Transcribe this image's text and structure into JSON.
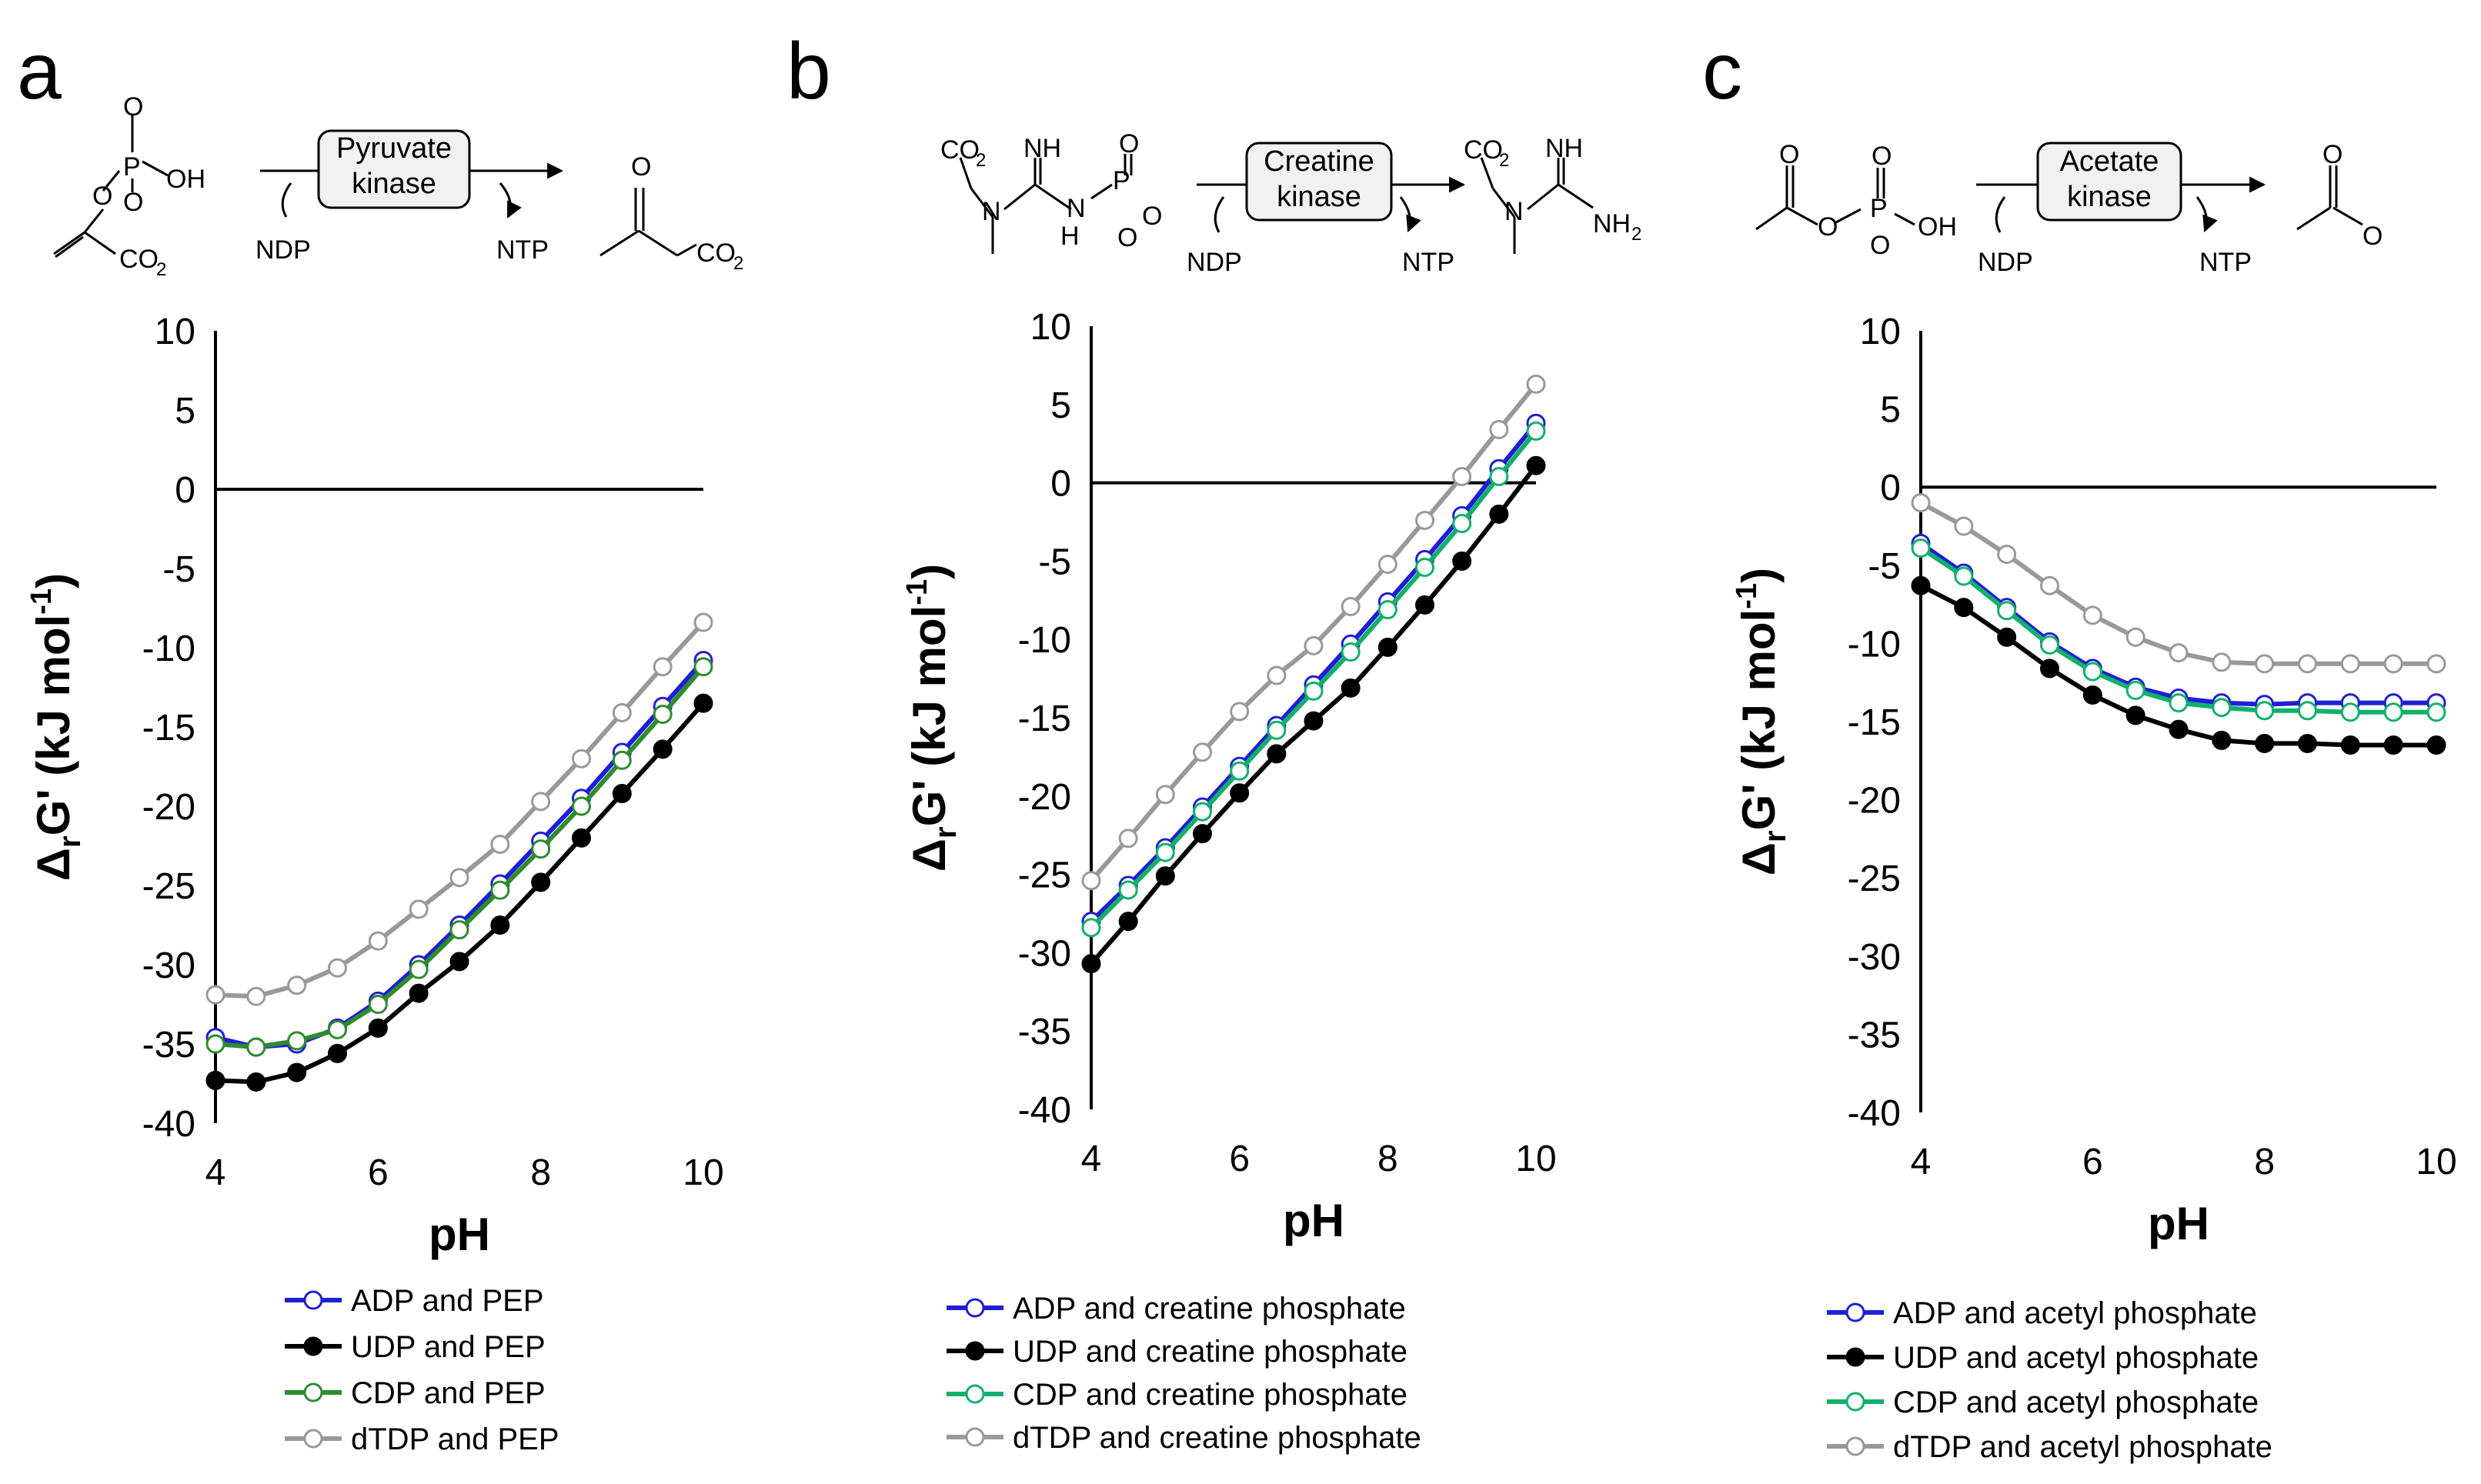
{
  "chart_data": [
    {
      "type": "line",
      "panel_label": "a",
      "enzyme_label": "Pyruvate kinase",
      "reaction": {
        "left_cofactor": "NDP",
        "right_cofactor": "NTP"
      },
      "xlabel": "pH",
      "ylabel": "ΔrG' (kJ mol-1)",
      "xlim": [
        4,
        10
      ],
      "ylim": [
        -40,
        10
      ],
      "xticks": [
        "4",
        "6",
        "8",
        "10"
      ],
      "yticks": [
        "10",
        "5",
        "0",
        "-5",
        "-10",
        "-15",
        "-20",
        "-25",
        "-30",
        "-35",
        "-40"
      ],
      "legend_position": "bottom",
      "x": [
        4,
        4.5,
        5,
        5.5,
        6,
        6.5,
        7,
        7.5,
        8,
        8.5,
        9,
        9.5,
        10
      ],
      "series": [
        {
          "name": "ADP and PEP",
          "line_color": "#1f1fd6",
          "marker_fill": "#ffffff",
          "marker_stroke": "#1f1fd6",
          "values": [
            -34.6,
            -35.2,
            -35.0,
            -34.0,
            -32.3,
            -30.0,
            -27.5,
            -24.9,
            -22.2,
            -19.5,
            -16.6,
            -13.7,
            -10.8
          ]
        },
        {
          "name": "UDP and PEP",
          "line_color": "#000000",
          "marker_fill": "#000000",
          "marker_stroke": "#000000",
          "values": [
            -37.3,
            -37.4,
            -36.8,
            -35.6,
            -34.0,
            -31.8,
            -29.8,
            -27.5,
            -24.8,
            -22.0,
            -19.2,
            -16.4,
            -13.5
          ]
        },
        {
          "name": "CDP and PEP",
          "line_color": "#2e8b2e",
          "marker_fill": "#ffffff",
          "marker_stroke": "#2e8b2e",
          "values": [
            -35.0,
            -35.2,
            -34.8,
            -34.1,
            -32.5,
            -30.3,
            -27.8,
            -25.3,
            -22.7,
            -20.0,
            -17.1,
            -14.2,
            -11.2
          ]
        },
        {
          "name": "dTDP and PEP",
          "line_color": "#999999",
          "marker_fill": "#ffffff",
          "marker_stroke": "#999999",
          "values": [
            -31.9,
            -32.0,
            -31.3,
            -30.2,
            -28.5,
            -26.5,
            -24.5,
            -22.4,
            -19.7,
            -17.0,
            -14.1,
            -11.2,
            -8.4
          ]
        }
      ]
    },
    {
      "type": "line",
      "panel_label": "b",
      "enzyme_label": "Creatine kinase",
      "reaction": {
        "left_cofactor": "NDP",
        "right_cofactor": "NTP"
      },
      "xlabel": "pH",
      "ylabel": "ΔrG' (kJ mol-1)",
      "xlim": [
        4,
        10
      ],
      "ylim": [
        -40,
        10
      ],
      "xticks": [
        "4",
        "6",
        "8",
        "10"
      ],
      "yticks": [
        "10",
        "5",
        "0",
        "-5",
        "-10",
        "-15",
        "-20",
        "-25",
        "-30",
        "-35",
        "-40"
      ],
      "legend_position": "bottom",
      "x": [
        4,
        4.5,
        5,
        5.5,
        6,
        6.5,
        7,
        7.5,
        8,
        8.5,
        9,
        9.5,
        10
      ],
      "series": [
        {
          "name": "ADP and creatine phosphate",
          "line_color": "#1f1fd6",
          "marker_fill": "#ffffff",
          "marker_stroke": "#1f1fd6",
          "values": [
            -28.0,
            -25.7,
            -23.3,
            -20.7,
            -18.1,
            -15.5,
            -12.9,
            -10.3,
            -7.6,
            -4.9,
            -2.1,
            0.9,
            3.8
          ]
        },
        {
          "name": "UDP and creatine phosphate",
          "line_color": "#000000",
          "marker_fill": "#000000",
          "marker_stroke": "#000000",
          "values": [
            -30.7,
            -28.0,
            -25.1,
            -22.4,
            -19.8,
            -17.3,
            -15.2,
            -13.1,
            -10.5,
            -7.8,
            -5.0,
            -2.0,
            1.1
          ]
        },
        {
          "name": "CDP and creatine phosphate",
          "line_color": "#12b06a",
          "marker_fill": "#ffffff",
          "marker_stroke": "#12b06a",
          "values": [
            -28.4,
            -26.0,
            -23.6,
            -21.0,
            -18.4,
            -15.8,
            -13.3,
            -10.8,
            -8.1,
            -5.4,
            -2.6,
            0.4,
            3.3
          ]
        },
        {
          "name": "dTDP and creatine phosphate",
          "line_color": "#999999",
          "marker_fill": "#ffffff",
          "marker_stroke": "#999999",
          "values": [
            -25.4,
            -22.7,
            -19.9,
            -17.2,
            -14.6,
            -12.3,
            -10.4,
            -7.9,
            -5.2,
            -2.4,
            0.4,
            3.4,
            6.3
          ]
        }
      ]
    },
    {
      "type": "line",
      "panel_label": "c",
      "enzyme_label": "Acetate kinase",
      "reaction": {
        "left_cofactor": "NDP",
        "right_cofactor": "NTP"
      },
      "xlabel": "pH",
      "ylabel": "ΔrG' (kJ mol-1)",
      "xlim": [
        4,
        10
      ],
      "ylim": [
        -40,
        10
      ],
      "xticks": [
        "4",
        "6",
        "8",
        "10"
      ],
      "yticks": [
        "10",
        "5",
        "0",
        "-5",
        "-10",
        "-15",
        "-20",
        "-25",
        "-30",
        "-35",
        "-40"
      ],
      "legend_position": "bottom",
      "x": [
        4,
        4.5,
        5,
        5.5,
        6,
        6.5,
        7,
        7.5,
        8,
        8.5,
        9,
        9.5,
        10
      ],
      "series": [
        {
          "name": "ADP and acetyl phosphate",
          "line_color": "#1f1fd6",
          "marker_fill": "#ffffff",
          "marker_stroke": "#1f1fd6",
          "values": [
            -3.6,
            -5.5,
            -7.7,
            -9.9,
            -11.6,
            -12.8,
            -13.5,
            -13.8,
            -13.9,
            -13.8,
            -13.8,
            -13.8,
            -13.8
          ]
        },
        {
          "name": "UDP and acetyl phosphate",
          "line_color": "#000000",
          "marker_fill": "#000000",
          "marker_stroke": "#000000",
          "values": [
            -6.3,
            -7.7,
            -9.6,
            -11.6,
            -13.3,
            -14.6,
            -15.5,
            -16.2,
            -16.4,
            -16.4,
            -16.5,
            -16.5,
            -16.5
          ]
        },
        {
          "name": "CDP and acetyl phosphate",
          "line_color": "#12b06a",
          "marker_fill": "#ffffff",
          "marker_stroke": "#12b06a",
          "values": [
            -3.9,
            -5.7,
            -7.9,
            -10.1,
            -11.8,
            -13.0,
            -13.8,
            -14.1,
            -14.3,
            -14.3,
            -14.4,
            -14.4,
            -14.4
          ]
        },
        {
          "name": "dTDP and acetyl phosphate",
          "line_color": "#999999",
          "marker_fill": "#ffffff",
          "marker_stroke": "#999999",
          "values": [
            -1.0,
            -2.5,
            -4.3,
            -6.3,
            -8.2,
            -9.6,
            -10.6,
            -11.2,
            -11.3,
            -11.3,
            -11.3,
            -11.3,
            -11.3
          ]
        }
      ]
    }
  ]
}
